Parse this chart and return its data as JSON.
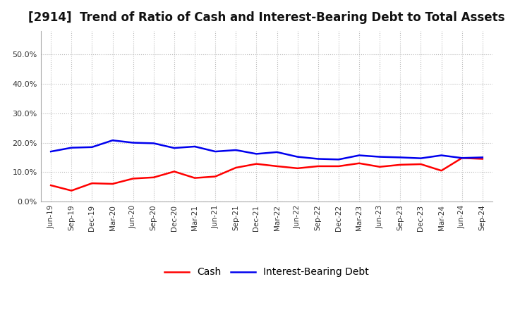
{
  "title": "[2914]  Trend of Ratio of Cash and Interest-Bearing Debt to Total Assets",
  "x_labels": [
    "Jun-19",
    "Sep-19",
    "Dec-19",
    "Mar-20",
    "Jun-20",
    "Sep-20",
    "Dec-20",
    "Mar-21",
    "Jun-21",
    "Sep-21",
    "Dec-21",
    "Mar-22",
    "Jun-22",
    "Sep-22",
    "Dec-22",
    "Mar-23",
    "Jun-23",
    "Sep-23",
    "Dec-23",
    "Mar-24",
    "Jun-24",
    "Sep-24"
  ],
  "cash": [
    0.055,
    0.037,
    0.062,
    0.06,
    0.078,
    0.082,
    0.102,
    0.08,
    0.085,
    0.115,
    0.128,
    0.12,
    0.113,
    0.12,
    0.12,
    0.13,
    0.118,
    0.125,
    0.127,
    0.105,
    0.148,
    0.145
  ],
  "interest_bearing_debt": [
    0.17,
    0.183,
    0.185,
    0.208,
    0.2,
    0.198,
    0.182,
    0.187,
    0.17,
    0.175,
    0.162,
    0.168,
    0.152,
    0.145,
    0.143,
    0.157,
    0.152,
    0.15,
    0.147,
    0.157,
    0.148,
    0.15
  ],
  "cash_color": "#FF0000",
  "debt_color": "#0000EE",
  "background_color": "#FFFFFF",
  "plot_bg_color": "#FFFFFF",
  "grid_color": "#BBBBBB",
  "ylim": [
    0.0,
    0.58
  ],
  "yticks": [
    0.0,
    0.1,
    0.2,
    0.3,
    0.4,
    0.5
  ],
  "title_fontsize": 12,
  "legend_labels": [
    "Cash",
    "Interest-Bearing Debt"
  ]
}
